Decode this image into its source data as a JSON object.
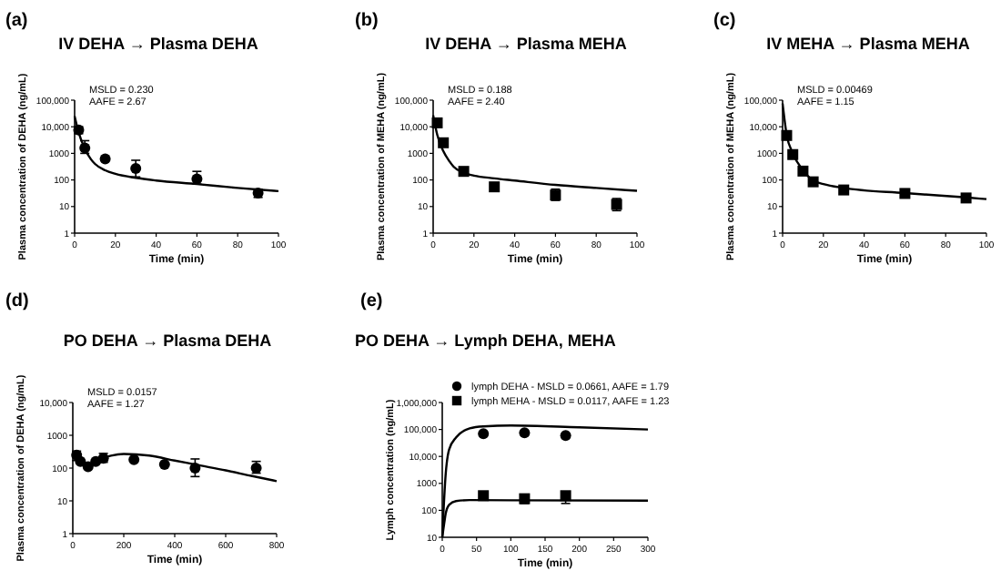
{
  "chart_data": [
    {
      "type": "scatter",
      "title": "IV DEHA → Plasma DEHA",
      "xlabel": "Time (min)",
      "ylabel": "Plasma concentration of DEHA (ng/mL)",
      "annotations": [
        "(a)",
        "MSLD = 0.230",
        "AAFE = 2.67"
      ],
      "log": "y",
      "xlim": [
        0,
        100
      ],
      "xticks": [
        0,
        20,
        40,
        60,
        80,
        100
      ],
      "ylim": [
        1,
        100000
      ],
      "yticks": [
        1,
        10,
        100,
        1000,
        {
          "value": 10000,
          "label": "10,000"
        },
        {
          "value": 100000,
          "label": "100,000"
        }
      ],
      "series": [
        {
          "type": "scatter",
          "marker": "circle",
          "color": "#000000",
          "x": [
            2,
            5,
            15,
            30,
            60,
            90
          ],
          "values": [
            7500,
            1600,
            620,
            270,
            110,
            32
          ],
          "errors": [
            [
              5500,
              10000
            ],
            [
              1000,
              3000
            ],
            null,
            [
              130,
              550
            ],
            [
              70,
              210
            ],
            [
              22,
              45
            ]
          ]
        },
        {
          "type": "line",
          "color": "#000000",
          "x": [
            0,
            2,
            5,
            8,
            10,
            15,
            20,
            30,
            40,
            60,
            80,
            100
          ],
          "values": [
            25000,
            6000,
            1500,
            600,
            400,
            230,
            170,
            120,
            95,
            70,
            50,
            38
          ]
        }
      ]
    },
    {
      "type": "scatter",
      "title": "IV DEHA → Plasma MEHA",
      "xlabel": "Time (min)",
      "ylabel": "Plasma concentration of MEHA (ng/mL)",
      "annotations": [
        "(b)",
        "MSLD = 0.188",
        "AAFE = 2.40"
      ],
      "log": "y",
      "xlim": [
        0,
        100
      ],
      "xticks": [
        0,
        20,
        40,
        60,
        80,
        100
      ],
      "ylim": [
        1,
        100000
      ],
      "yticks": [
        1,
        10,
        100,
        1000,
        {
          "value": 10000,
          "label": "10,000"
        },
        {
          "value": 100000,
          "label": "100,000"
        }
      ],
      "series": [
        {
          "type": "scatter",
          "marker": "square",
          "color": "#000000",
          "x": [
            2,
            5,
            15,
            30,
            60,
            90
          ],
          "values": [
            14000,
            2500,
            210,
            55,
            27,
            12
          ],
          "errors": [
            null,
            null,
            [
              160,
              280
            ],
            null,
            [
              17,
              45
            ],
            [
              7,
              20
            ]
          ]
        },
        {
          "type": "line",
          "color": "#000000",
          "x": [
            0,
            2,
            5,
            8,
            10,
            15,
            20,
            30,
            40,
            60,
            80,
            100
          ],
          "values": [
            27000,
            5000,
            1200,
            500,
            315,
            185,
            145,
            115,
            95,
            65,
            50,
            39
          ]
        }
      ]
    },
    {
      "type": "scatter",
      "title": "IV MEHA → Plasma MEHA",
      "xlabel": "Time (min)",
      "ylabel": "Plasma concentration of MEHA (ng/mL)",
      "annotations": [
        "(c)",
        "MSLD = 0.00469",
        "AAFE = 1.15"
      ],
      "log": "y",
      "xlim": [
        0,
        100
      ],
      "xticks": [
        0,
        20,
        40,
        60,
        80,
        100
      ],
      "ylim": [
        1,
        100000
      ],
      "yticks": [
        1,
        10,
        100,
        1000,
        {
          "value": 10000,
          "label": "10,000"
        },
        {
          "value": 100000,
          "label": "100,000"
        }
      ],
      "series": [
        {
          "type": "scatter",
          "marker": "square",
          "color": "#000000",
          "x": [
            2,
            5,
            10,
            15,
            30,
            60,
            90
          ],
          "values": [
            4700,
            900,
            215,
            85,
            42,
            31,
            21
          ],
          "errors": [
            null,
            null,
            [
              170,
              280
            ],
            [
              60,
              120
            ],
            [
              30,
              60
            ],
            [
              22,
              45
            ],
            [
              17,
              27
            ]
          ]
        },
        {
          "type": "line",
          "color": "#000000",
          "x": [
            0,
            2,
            5,
            10,
            15,
            20,
            30,
            60,
            90,
            100
          ],
          "values": [
            75000,
            5000,
            1000,
            230,
            95,
            70,
            50,
            32,
            22,
            19
          ]
        }
      ]
    },
    {
      "type": "scatter",
      "title": "PO DEHA → Plasma DEHA",
      "xlabel": "Time (min)",
      "ylabel": "Plasma concentration of DEHA (ng/mL)",
      "annotations": [
        "(d)",
        "MSLD = 0.0157",
        "AAFE = 1.27"
      ],
      "log": "y",
      "xlim": [
        0,
        800
      ],
      "xticks": [
        0,
        200,
        400,
        600,
        800
      ],
      "ylim": [
        1,
        10000
      ],
      "yticks": [
        1,
        10,
        100,
        1000,
        {
          "value": 10000,
          "label": "10,000"
        }
      ],
      "series": [
        {
          "type": "scatter",
          "marker": "circle",
          "color": "#000000",
          "x": [
            15,
            30,
            60,
            90,
            120,
            240,
            360,
            480,
            720
          ],
          "values": [
            250,
            160,
            110,
            160,
            200,
            180,
            130,
            100,
            100
          ],
          "errors": [
            [
              170,
              330
            ],
            null,
            null,
            null,
            [
              150,
              280
            ],
            null,
            null,
            [
              55,
              190
            ],
            [
              70,
              160
            ]
          ]
        },
        {
          "type": "line",
          "color": "#000000",
          "x": [
            0,
            15,
            40,
            60,
            100,
            150,
            200,
            300,
            400,
            500,
            600,
            700,
            800
          ],
          "values": [
            300,
            180,
            130,
            125,
            180,
            240,
            270,
            240,
            170,
            120,
            85,
            58,
            40
          ]
        }
      ]
    },
    {
      "type": "scatter",
      "title": "PO DEHA →  Lymph DEHA, MEHA",
      "xlabel": "Time (min)",
      "ylabel": "Lymph concentration (ng/mL)",
      "annotations": [
        "(e)"
      ],
      "legend": "top",
      "log": "y",
      "xlim": [
        0,
        300
      ],
      "xticks": [
        0,
        50,
        100,
        150,
        200,
        250,
        300
      ],
      "ylim": [
        10,
        1000000
      ],
      "yticks": [
        10,
        100,
        1000,
        {
          "value": 10000,
          "label": "10,000"
        },
        {
          "value": 100000,
          "label": "100,000"
        },
        {
          "value": 1000000,
          "label": "1,000,000"
        }
      ],
      "series": [
        {
          "type": "scatter",
          "name": "lymph DEHA - MSLD = 0.0661, AAFE = 1.79",
          "marker": "circle",
          "color": "#000000",
          "x": [
            60,
            120,
            180
          ],
          "values": [
            70000,
            75000,
            60000
          ],
          "errors": [
            null,
            null,
            null
          ]
        },
        {
          "type": "scatter",
          "name": "lymph MEHA - MSLD = 0.0117, AAFE = 1.23",
          "marker": "square",
          "color": "#000000",
          "x": [
            60,
            120,
            180
          ],
          "values": [
            350,
            270,
            350
          ],
          "errors": [
            null,
            [
              180,
              350
            ],
            [
              180,
              450
            ]
          ]
        },
        {
          "type": "line",
          "color": "#000000",
          "x": [
            0,
            5,
            10,
            20,
            40,
            60,
            100,
            200,
            300
          ],
          "values": [
            10,
            2200,
            18000,
            50000,
            110000,
            130000,
            140000,
            120000,
            100000
          ]
        },
        {
          "type": "line",
          "color": "#000000",
          "x": [
            0,
            3,
            5,
            10,
            20,
            40,
            100,
            300
          ],
          "values": [
            10,
            35,
            75,
            160,
            220,
            240,
            235,
            230
          ]
        }
      ]
    }
  ]
}
